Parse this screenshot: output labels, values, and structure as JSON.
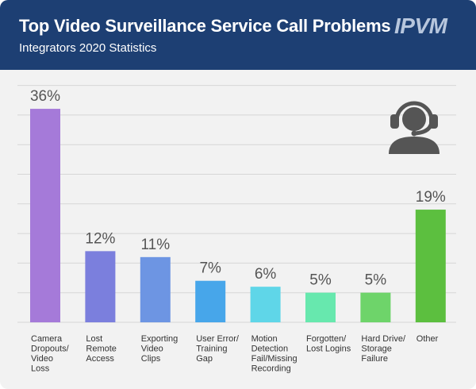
{
  "header": {
    "title": "Top Video Surveillance Service Call Problems",
    "subtitle": "Integrators 2020 Statistics",
    "logo_text": "IPVM"
  },
  "colors": {
    "header_bg": "#1d3f73",
    "card_bg": "#f2f2f2",
    "grid": "#d6d6d6",
    "label": "#333333",
    "value_label": "#555555",
    "icon": "#555555"
  },
  "icons": {
    "agent": "headset-support-agent-icon"
  },
  "chart_data": {
    "type": "bar",
    "categories": [
      "Camera Dropouts/ Video Loss",
      "Lost Remote Access",
      "Exporting Video Clips",
      "User Error/ Training Gap",
      "Motion Detection Fail/Missing Recording",
      "Forgotten/ Lost Logins",
      "Hard Drive/ Storage Failure",
      "Other"
    ],
    "category_lines": [
      [
        "Camera",
        "Dropouts/",
        "Video",
        "Loss"
      ],
      [
        "Lost",
        "Remote",
        "Access"
      ],
      [
        "Exporting",
        "Video",
        "Clips"
      ],
      [
        "User Error/",
        "Training",
        "Gap"
      ],
      [
        "Motion",
        "Detection",
        "Fail/Missing",
        "Recording"
      ],
      [
        "Forgotten/",
        "Lost Logins"
      ],
      [
        "Hard Drive/",
        "Storage",
        "Failure"
      ],
      [
        "Other"
      ]
    ],
    "values": [
      36,
      12,
      11,
      7,
      6,
      5,
      5,
      19
    ],
    "value_labels": [
      "36%",
      "12%",
      "11%",
      "7%",
      "6%",
      "5%",
      "5%",
      "19%"
    ],
    "bar_colors": [
      "#a57ad9",
      "#7b7fdd",
      "#6d95e3",
      "#47a6ea",
      "#5fd6e8",
      "#67e8ae",
      "#6ed46a",
      "#5cbf3f"
    ],
    "title": "Top Video Surveillance Service Call Problems",
    "xlabel": "",
    "ylabel": "",
    "ylim": [
      0,
      36
    ],
    "grid": true,
    "legend": false
  }
}
